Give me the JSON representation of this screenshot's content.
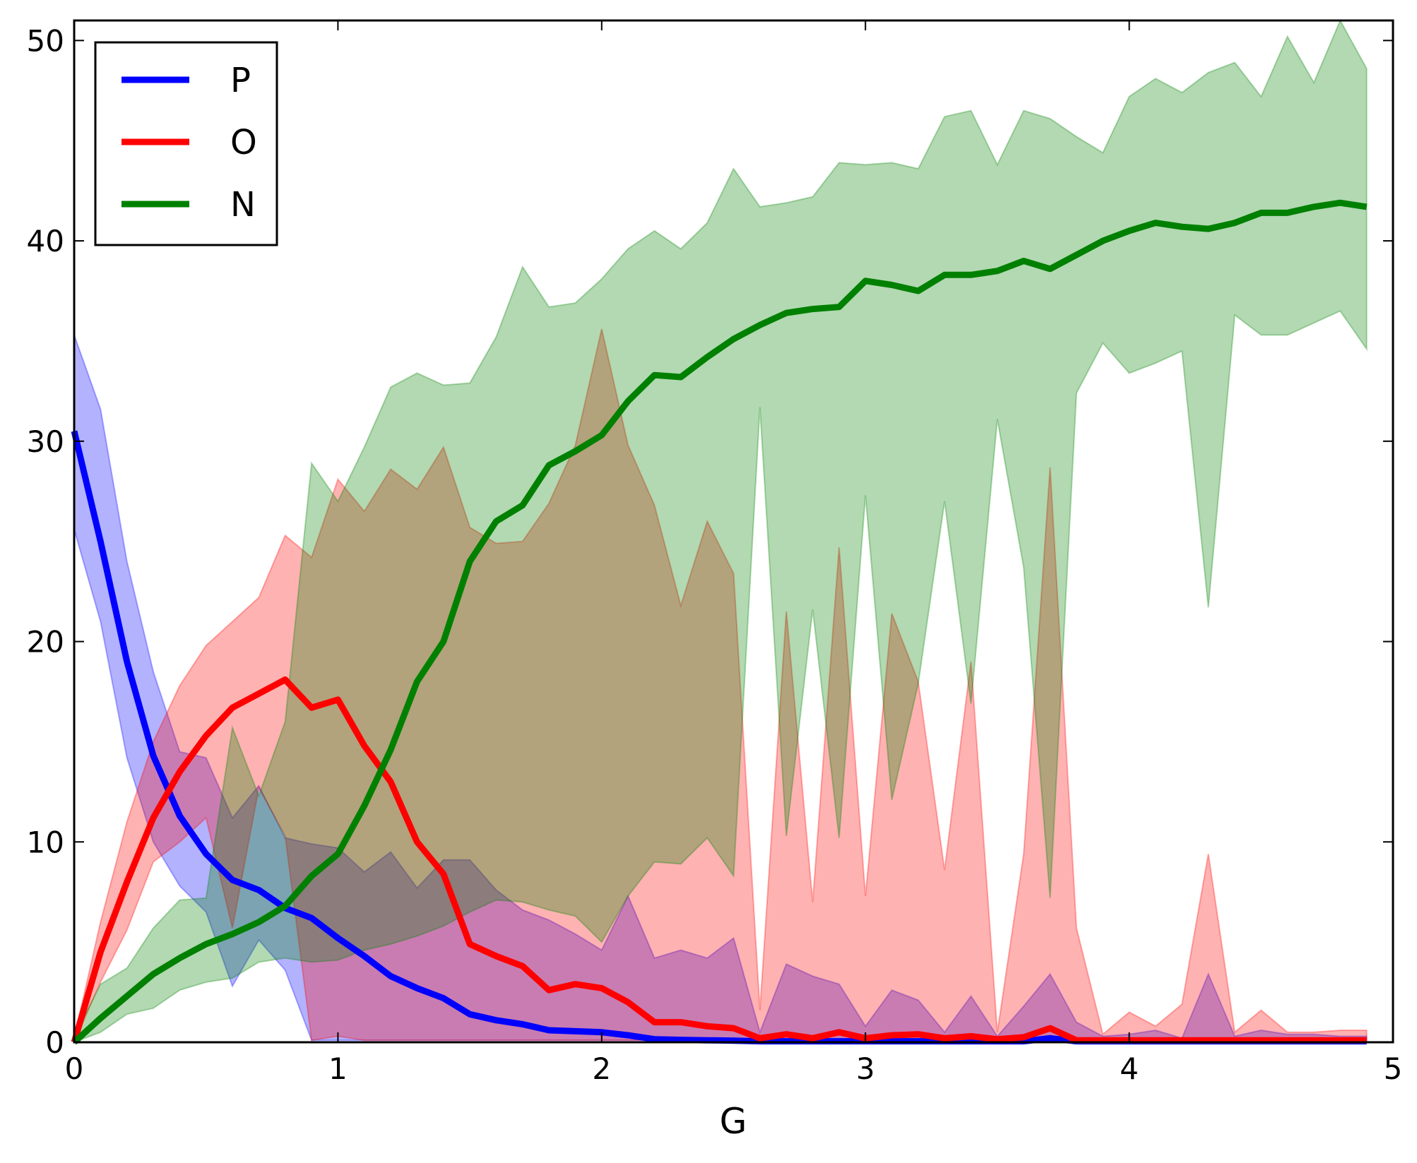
{
  "chart_data": {
    "type": "line",
    "title": "",
    "xlabel": "G",
    "ylabel": "",
    "xlim": [
      0,
      5
    ],
    "ylim": [
      0,
      51
    ],
    "xticks": [
      0,
      1,
      2,
      3,
      4,
      5
    ],
    "yticks": [
      0,
      10,
      20,
      30,
      40,
      50
    ],
    "grid": false,
    "legend_position": "top-left",
    "x": [
      0,
      0.1,
      0.2,
      0.3,
      0.4,
      0.5,
      0.6,
      0.7,
      0.8,
      0.9,
      1.0,
      1.1,
      1.2,
      1.3,
      1.4,
      1.5,
      1.6,
      1.7,
      1.8,
      1.9,
      2.0,
      2.1,
      2.2,
      2.3,
      2.4,
      2.5,
      2.6,
      2.7,
      2.8,
      2.9,
      3.0,
      3.1,
      3.2,
      3.3,
      3.4,
      3.5,
      3.6,
      3.7,
      3.8,
      3.9,
      4.0,
      4.1,
      4.2,
      4.3,
      4.4,
      4.5,
      4.6,
      4.7,
      4.8,
      4.9
    ],
    "series": [
      {
        "name": "P",
        "color": "#0000ff",
        "values": [
          30.5,
          25.0,
          19.0,
          14.3,
          11.3,
          9.4,
          8.1,
          7.6,
          6.7,
          6.2,
          5.2,
          4.3,
          3.3,
          2.7,
          2.2,
          1.4,
          1.1,
          0.9,
          0.6,
          0.55,
          0.5,
          0.35,
          0.15,
          0.12,
          0.1,
          0.08,
          0.05,
          0.05,
          0.05,
          0.05,
          0.05,
          0.05,
          0.05,
          0.05,
          0.05,
          0.05,
          0.05,
          0.2,
          0.05,
          0.05,
          0.05,
          0.05,
          0.05,
          0.05,
          0.05,
          0.05,
          0.05,
          0.05,
          0.05,
          0.05
        ],
        "upper": [
          35.3,
          31.6,
          24.0,
          18.5,
          14.5,
          14.2,
          11.2,
          12.8,
          10.2,
          9.9,
          9.7,
          8.5,
          9.5,
          7.7,
          9.1,
          9.1,
          7.6,
          6.6,
          6.1,
          5.4,
          4.6,
          7.3,
          4.2,
          4.6,
          4.2,
          5.2,
          0.5,
          3.9,
          3.3,
          2.9,
          0.8,
          2.6,
          2.1,
          0.5,
          2.3,
          0.3,
          1.8,
          3.4,
          1.0,
          0.3,
          0.4,
          0.6,
          0.2,
          3.4,
          0.3,
          0.6,
          0.4,
          0.4,
          0.3,
          0.3
        ],
        "lower": [
          25.6,
          21.0,
          14.2,
          10.0,
          7.8,
          6.5,
          2.8,
          5.1,
          3.6,
          0.1,
          0.1,
          0.1,
          0.1,
          0.1,
          0.1,
          0.1,
          0.1,
          0.1,
          0.1,
          0.1,
          0.1,
          0.1,
          0.1,
          0.1,
          0.1,
          0.1,
          0.1,
          0.1,
          0.1,
          0.1,
          0.1,
          0.1,
          0.1,
          0.1,
          0.1,
          0.1,
          0.1,
          0.1,
          0.1,
          0.1,
          0.1,
          0.1,
          0.1,
          0.1,
          0.1,
          0.1,
          0.1,
          0.1,
          0.1,
          0.1
        ]
      },
      {
        "name": "O",
        "color": "#ff0000",
        "values": [
          0.0,
          4.5,
          8.0,
          11.2,
          13.5,
          15.3,
          16.7,
          17.4,
          18.1,
          16.7,
          17.1,
          14.8,
          13.0,
          10.0,
          8.4,
          4.9,
          4.3,
          3.8,
          2.6,
          2.9,
          2.7,
          2.0,
          1.0,
          1.0,
          0.8,
          0.7,
          0.2,
          0.4,
          0.2,
          0.5,
          0.2,
          0.35,
          0.4,
          0.2,
          0.3,
          0.15,
          0.25,
          0.7,
          0.1,
          0.1,
          0.1,
          0.1,
          0.1,
          0.1,
          0.1,
          0.1,
          0.1,
          0.1,
          0.1,
          0.1
        ],
        "upper": [
          0.2,
          6.0,
          11.0,
          15.0,
          17.8,
          19.8,
          21.0,
          22.2,
          25.3,
          24.2,
          28.1,
          26.5,
          28.6,
          27.6,
          29.7,
          25.7,
          24.9,
          25.0,
          26.9,
          29.8,
          35.6,
          29.8,
          26.8,
          21.8,
          26.0,
          23.4,
          1.6,
          21.5,
          7.0,
          24.7,
          7.3,
          21.4,
          18.0,
          8.6,
          19.0,
          0.5,
          9.4,
          28.7,
          5.7,
          0.4,
          1.5,
          0.8,
          1.9,
          9.4,
          0.5,
          1.6,
          0.5,
          0.5,
          0.6,
          0.6
        ],
        "lower": [
          0.0,
          3.0,
          5.6,
          9.0,
          10.0,
          11.2,
          5.7,
          12.7,
          10.3,
          0.1,
          0.3,
          0.1,
          0.1,
          0.1,
          0.1,
          0.1,
          0.1,
          0.1,
          0.1,
          0.1,
          0.1,
          0.1,
          0.1,
          0.1,
          0.1,
          0.1,
          0.1,
          0.1,
          0.1,
          0.1,
          0.1,
          0.1,
          0.1,
          0.1,
          0.1,
          0.1,
          0.1,
          0.1,
          0.1,
          0.1,
          0.1,
          0.1,
          0.1,
          0.1,
          0.1,
          0.1,
          0.1,
          0.1,
          0.1,
          0.1
        ]
      },
      {
        "name": "N",
        "color": "#008000",
        "values": [
          0.0,
          1.2,
          2.3,
          3.4,
          4.2,
          4.9,
          5.4,
          6.0,
          6.8,
          8.3,
          9.4,
          11.8,
          14.6,
          18.0,
          20.0,
          24.0,
          26.0,
          26.8,
          28.8,
          29.5,
          30.3,
          32.0,
          33.3,
          33.2,
          34.2,
          35.1,
          35.8,
          36.4,
          36.6,
          36.7,
          38.0,
          37.8,
          37.5,
          38.3,
          38.3,
          38.5,
          39.0,
          38.6,
          39.3,
          40.0,
          40.5,
          40.9,
          40.7,
          40.6,
          40.9,
          41.4,
          41.4,
          41.7,
          41.9,
          41.7
        ],
        "upper": [
          0.3,
          2.9,
          3.7,
          5.7,
          7.1,
          7.2,
          15.7,
          12.3,
          16.0,
          28.9,
          27.0,
          29.7,
          32.7,
          33.4,
          32.8,
          32.9,
          35.2,
          38.7,
          36.7,
          36.9,
          38.1,
          39.6,
          40.5,
          39.6,
          40.9,
          43.6,
          41.7,
          41.9,
          42.2,
          43.9,
          43.8,
          43.9,
          43.6,
          46.2,
          46.5,
          43.8,
          46.5,
          46.1,
          45.2,
          44.4,
          47.2,
          48.1,
          47.4,
          48.4,
          48.9,
          47.2,
          50.2,
          47.9,
          51.0,
          48.6
        ],
        "lower": [
          0.0,
          0.5,
          1.4,
          1.7,
          2.6,
          3.0,
          3.2,
          4.0,
          4.2,
          4.0,
          4.1,
          4.6,
          4.9,
          5.3,
          5.8,
          6.5,
          7.1,
          7.0,
          6.6,
          6.3,
          5.0,
          7.3,
          9.0,
          8.9,
          10.2,
          8.3,
          31.7,
          10.3,
          21.6,
          10.2,
          27.3,
          12.1,
          17.9,
          27.0,
          16.9,
          31.1,
          23.7,
          7.2,
          32.4,
          34.9,
          33.4,
          33.9,
          34.5,
          21.7,
          36.3,
          35.3,
          35.3,
          35.9,
          36.5,
          34.6
        ]
      }
    ]
  }
}
